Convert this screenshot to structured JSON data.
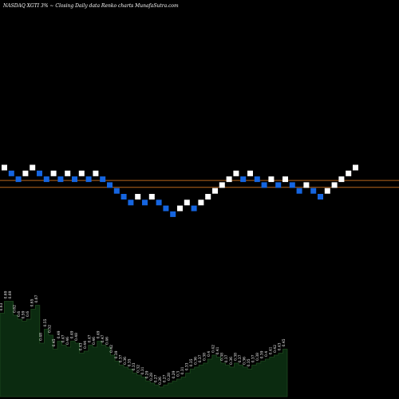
{
  "header": {
    "text": "NASDAQ XGTI 3% ~  Closing Daily data  Renko  charts MunafaSutra.com"
  },
  "colors": {
    "background": "#000000",
    "up_brick": "#ffffff",
    "down_brick": "#1565e0",
    "ref_line": "#b5651d",
    "volume_fill": "#0b2b10",
    "volume_stroke": "#1f4a1f"
  },
  "chart_data": [
    {
      "type": "renko",
      "title": "",
      "brick_size_pct": 3,
      "bricks": [
        {
          "level": 0,
          "dir": "up"
        },
        {
          "level": -1,
          "dir": "down"
        },
        {
          "level": -2,
          "dir": "down"
        },
        {
          "level": -1,
          "dir": "up"
        },
        {
          "level": 0,
          "dir": "up"
        },
        {
          "level": -1,
          "dir": "down"
        },
        {
          "level": -2,
          "dir": "down"
        },
        {
          "level": -1,
          "dir": "up"
        },
        {
          "level": -2,
          "dir": "down"
        },
        {
          "level": -1,
          "dir": "up"
        },
        {
          "level": -2,
          "dir": "down"
        },
        {
          "level": -1,
          "dir": "up"
        },
        {
          "level": -2,
          "dir": "down"
        },
        {
          "level": -1,
          "dir": "up"
        },
        {
          "level": -2,
          "dir": "down"
        },
        {
          "level": -3,
          "dir": "down"
        },
        {
          "level": -4,
          "dir": "down"
        },
        {
          "level": -5,
          "dir": "down"
        },
        {
          "level": -6,
          "dir": "down"
        },
        {
          "level": -5,
          "dir": "up"
        },
        {
          "level": -6,
          "dir": "down"
        },
        {
          "level": -5,
          "dir": "up"
        },
        {
          "level": -6,
          "dir": "down"
        },
        {
          "level": -7,
          "dir": "down"
        },
        {
          "level": -8,
          "dir": "down"
        },
        {
          "level": -7,
          "dir": "up"
        },
        {
          "level": -6,
          "dir": "up"
        },
        {
          "level": -7,
          "dir": "down"
        },
        {
          "level": -6,
          "dir": "up"
        },
        {
          "level": -5,
          "dir": "up"
        },
        {
          "level": -4,
          "dir": "up"
        },
        {
          "level": -3,
          "dir": "up"
        },
        {
          "level": -2,
          "dir": "up"
        },
        {
          "level": -1,
          "dir": "up"
        },
        {
          "level": -2,
          "dir": "down"
        },
        {
          "level": -1,
          "dir": "up"
        },
        {
          "level": -2,
          "dir": "down"
        },
        {
          "level": -3,
          "dir": "down"
        },
        {
          "level": -2,
          "dir": "up"
        },
        {
          "level": -3,
          "dir": "down"
        },
        {
          "level": -2,
          "dir": "up"
        },
        {
          "level": -3,
          "dir": "down"
        },
        {
          "level": -4,
          "dir": "down"
        },
        {
          "level": -3,
          "dir": "up"
        },
        {
          "level": -4,
          "dir": "down"
        },
        {
          "level": -5,
          "dir": "down"
        },
        {
          "level": -4,
          "dir": "up"
        },
        {
          "level": -3,
          "dir": "up"
        },
        {
          "level": -2,
          "dir": "up"
        },
        {
          "level": -1,
          "dir": "up"
        },
        {
          "level": 0,
          "dir": "up"
        }
      ],
      "reference_lines_levels": [
        -2.2,
        -3.4
      ]
    },
    {
      "type": "area",
      "title": "",
      "labels": [
        "0.63",
        "0.69",
        "0.69",
        "0.62",
        "0.6",
        "0.59",
        "0.6",
        "0.65",
        "0.67",
        "0.48",
        "0.55",
        "0.52",
        "0.45",
        "0.49",
        "0.47",
        "0.46",
        "0.49",
        "0.48",
        "0.43",
        "0.44",
        "0.47",
        "0.46",
        "0.49",
        "0.47",
        "0.46",
        "0.42",
        "0.39",
        "0.37",
        "0.36",
        "0.35",
        "0.33",
        "0.32",
        "0.31",
        "0.29",
        "0.28",
        "0.27",
        "0.26",
        "0.27",
        "0.28",
        "0.29",
        "0.3",
        "0.31",
        "0.33",
        "0.35",
        "0.36",
        "0.37",
        "0.38",
        "0.4",
        "0.42",
        "0.41",
        "0.38",
        "0.37",
        "0.36",
        "0.38",
        "0.37",
        "0.36",
        "0.35",
        "0.37",
        "0.38",
        "0.39",
        "0.4",
        "0.41",
        "0.42",
        "0.43",
        "0.45"
      ],
      "values": [
        0.63,
        0.69,
        0.69,
        0.62,
        0.6,
        0.59,
        0.6,
        0.65,
        0.67,
        0.48,
        0.55,
        0.52,
        0.45,
        0.49,
        0.47,
        0.46,
        0.49,
        0.48,
        0.43,
        0.44,
        0.47,
        0.46,
        0.49,
        0.47,
        0.46,
        0.42,
        0.39,
        0.37,
        0.36,
        0.35,
        0.33,
        0.32,
        0.31,
        0.29,
        0.28,
        0.27,
        0.26,
        0.27,
        0.28,
        0.29,
        0.3,
        0.31,
        0.33,
        0.35,
        0.36,
        0.37,
        0.38,
        0.4,
        0.42,
        0.41,
        0.38,
        0.37,
        0.36,
        0.38,
        0.37,
        0.36,
        0.35,
        0.37,
        0.38,
        0.39,
        0.4,
        0.41,
        0.42,
        0.43,
        0.45
      ]
    }
  ]
}
